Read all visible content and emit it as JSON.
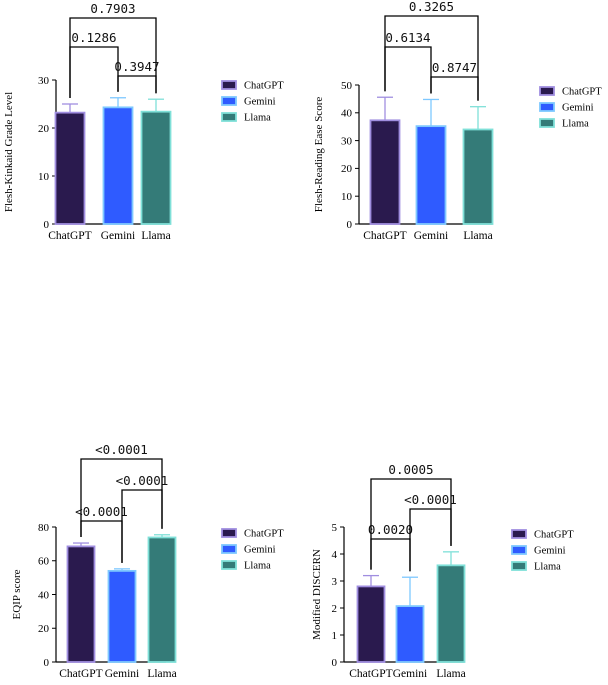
{
  "colors": {
    "ChatGPT": {
      "fill": "#2a1a4e",
      "edge": "#a08ee0"
    },
    "Gemini": {
      "fill": "#2f5bff",
      "edge": "#7ec8ff"
    },
    "Llama": {
      "fill": "#347b78",
      "edge": "#7fe0d8"
    }
  },
  "chart_data": [
    {
      "type": "bar",
      "ylabel": "Flesh-Kinkaid Grade Level",
      "categories": [
        "ChatGPT",
        "Gemini",
        "Llama"
      ],
      "values": [
        23.2,
        24.3,
        23.4
      ],
      "errors": [
        1.8,
        2.0,
        2.6
      ],
      "ylim": [
        0,
        30
      ],
      "yticks": [
        0,
        10,
        20,
        30
      ],
      "legend": [
        "ChatGPT",
        "Gemini",
        "Llama"
      ],
      "comparisons": [
        {
          "from": 0,
          "to": 2,
          "label": "0.7903"
        },
        {
          "from": 0,
          "to": 1,
          "label": "0.1286"
        },
        {
          "from": 1,
          "to": 2,
          "label": "0.3947"
        }
      ]
    },
    {
      "type": "bar",
      "ylabel": "Flesh-Reading Ease Score",
      "categories": [
        "ChatGPT",
        "Gemini",
        "Llama"
      ],
      "values": [
        37.3,
        35.2,
        34.0
      ],
      "errors": [
        8.3,
        9.6,
        8.2
      ],
      "ylim": [
        0,
        50
      ],
      "yticks": [
        0,
        10,
        20,
        30,
        40,
        50
      ],
      "legend": [
        "ChatGPT",
        "Gemini",
        "Llama"
      ],
      "comparisons": [
        {
          "from": 0,
          "to": 2,
          "label": "0.3265"
        },
        {
          "from": 0,
          "to": 1,
          "label": "0.6134"
        },
        {
          "from": 1,
          "to": 2,
          "label": "0.8747"
        }
      ]
    },
    {
      "type": "bar",
      "ylabel": "EQIP score",
      "categories": [
        "ChatGPT",
        "Gemini",
        "Llama"
      ],
      "values": [
        68.5,
        54.0,
        73.8
      ],
      "errors": [
        2.0,
        1.2,
        1.6
      ],
      "ylim": [
        0,
        80
      ],
      "yticks": [
        0,
        20,
        40,
        60,
        80
      ],
      "legend": [
        "ChatGPT",
        "Gemini",
        "Llama"
      ],
      "comparisons": [
        {
          "from": 0,
          "to": 2,
          "label": "<0.0001"
        },
        {
          "from": 0,
          "to": 1,
          "label": "<0.0001"
        },
        {
          "from": 1,
          "to": 2,
          "label": "<0.0001"
        }
      ]
    },
    {
      "type": "bar",
      "ylabel": "Modified DISCERN",
      "categories": [
        "ChatGPT",
        "Gemini",
        "Llama"
      ],
      "values": [
        2.8,
        2.07,
        3.58
      ],
      "errors": [
        0.4,
        1.07,
        0.5
      ],
      "ylim": [
        0,
        5
      ],
      "yticks": [
        0,
        1,
        2,
        3,
        4,
        5
      ],
      "legend": [
        "ChatGPT",
        "Gemini",
        "Llama"
      ],
      "comparisons": [
        {
          "from": 0,
          "to": 2,
          "label": "0.0005"
        },
        {
          "from": 0,
          "to": 1,
          "label": "0.0020"
        },
        {
          "from": 1,
          "to": 2,
          "label": "<0.0001"
        }
      ]
    }
  ]
}
